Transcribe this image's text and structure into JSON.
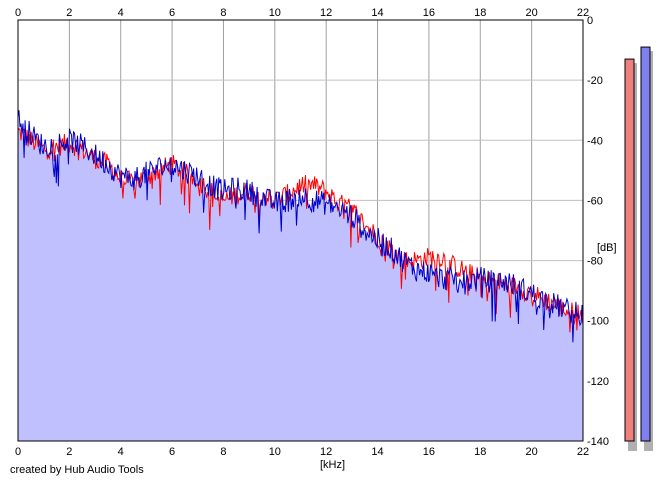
{
  "chart_data": {
    "type": "area",
    "xlabel": "[kHz]",
    "ylabel": "[dB]",
    "xlim": [
      0,
      22
    ],
    "ylim": [
      -140,
      0
    ],
    "x_ticks": [
      0,
      2,
      4,
      6,
      8,
      10,
      12,
      14,
      16,
      18,
      20,
      22
    ],
    "y_ticks": [
      0,
      -20,
      -40,
      -60,
      -80,
      -100,
      -120,
      -140
    ],
    "grid": true,
    "x_axis_top": true,
    "y_axis_side": "right",
    "credit": "created by Hub Audio Tools",
    "series": [
      {
        "color": "#ff0000",
        "x": [
          0,
          0.5,
          1,
          1.5,
          2,
          2.5,
          3,
          3.5,
          4,
          4.5,
          5,
          5.5,
          6,
          6.5,
          7,
          7.5,
          8,
          8.5,
          9,
          9.5,
          10,
          10.5,
          11,
          11.5,
          12,
          12.5,
          13,
          13.5,
          14,
          14.5,
          15,
          15.5,
          16,
          16.5,
          17,
          17.5,
          18,
          18.5,
          19,
          19.5,
          20,
          20.5,
          21,
          21.5,
          22
        ],
        "values": [
          -37,
          -40,
          -43,
          -42,
          -41,
          -43,
          -46,
          -48,
          -53,
          -54,
          -52,
          -50,
          -48,
          -51,
          -53,
          -57,
          -60,
          -58,
          -57,
          -58,
          -60,
          -58,
          -55,
          -55,
          -57,
          -61,
          -63,
          -68,
          -72,
          -76,
          -80,
          -80,
          -79,
          -79,
          -82,
          -84,
          -86,
          -87,
          -88,
          -89,
          -91,
          -93,
          -95,
          -97,
          -98
        ]
      },
      {
        "color": "#0000cc",
        "x": [
          0,
          0.5,
          1,
          1.5,
          2,
          2.5,
          3,
          3.5,
          4,
          4.5,
          5,
          5.5,
          6,
          6.5,
          7,
          7.5,
          8,
          8.5,
          9,
          9.5,
          10,
          10.5,
          11,
          11.5,
          12,
          12.5,
          13,
          13.5,
          14,
          14.5,
          15,
          15.5,
          16,
          16.5,
          17,
          17.5,
          18,
          18.5,
          19,
          19.5,
          20,
          20.5,
          21,
          21.5,
          22
        ],
        "values": [
          -33,
          -38,
          -42,
          -41,
          -40,
          -42,
          -45,
          -48,
          -52,
          -53,
          -51,
          -49,
          -48,
          -50,
          -52,
          -55,
          -57,
          -56,
          -57,
          -59,
          -61,
          -60,
          -58,
          -60,
          -61,
          -63,
          -65,
          -70,
          -73,
          -76,
          -80,
          -83,
          -84,
          -86,
          -86,
          -87,
          -86,
          -87,
          -87,
          -89,
          -91,
          -93,
          -95,
          -97,
          -98
        ]
      }
    ],
    "level_meters": [
      {
        "color": "#f08080",
        "level_db": -13
      },
      {
        "color": "#8080f0",
        "level_db": -9
      }
    ]
  }
}
